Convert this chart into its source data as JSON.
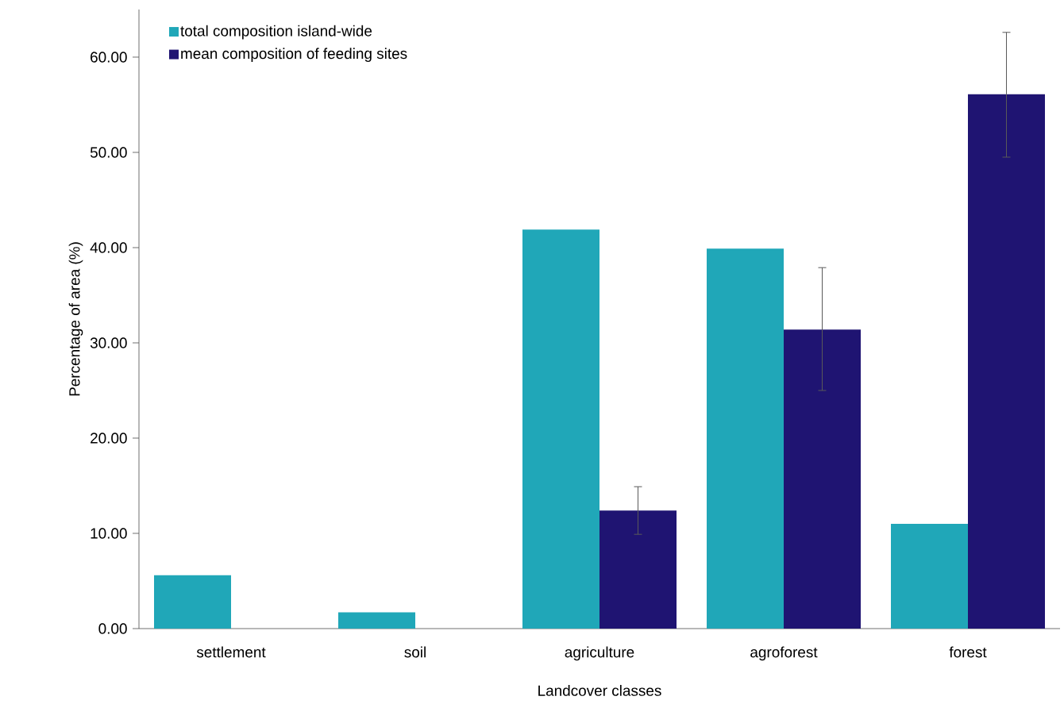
{
  "chart_data": {
    "type": "bar",
    "xlabel": "Landcover classes",
    "ylabel": "Percentage of area (%)",
    "categories": [
      "settlement",
      "soil",
      "agriculture",
      "agroforest",
      "forest"
    ],
    "series": [
      {
        "name": "total composition island-wide",
        "color": "#20a7b8",
        "values": [
          5.6,
          1.7,
          41.9,
          39.9,
          11.0
        ]
      },
      {
        "name": "mean composition of feeding sites",
        "color": "#1f1472",
        "values": [
          null,
          null,
          12.4,
          31.4,
          56.1
        ],
        "errors": [
          null,
          null,
          [
            9.9,
            14.9
          ],
          [
            25.0,
            37.9
          ],
          [
            49.5,
            62.6
          ]
        ]
      }
    ],
    "ylim": [
      0,
      65
    ],
    "yticks": [
      {
        "value": 0,
        "label": "0.00"
      },
      {
        "value": 10,
        "label": "10.00"
      },
      {
        "value": 20,
        "label": "20.00"
      },
      {
        "value": 30,
        "label": "30.00"
      },
      {
        "value": 40,
        "label": "40.00"
      },
      {
        "value": 50,
        "label": "50.00"
      },
      {
        "value": 60,
        "label": "60.00"
      }
    ],
    "grid": false,
    "legend": "top left"
  }
}
